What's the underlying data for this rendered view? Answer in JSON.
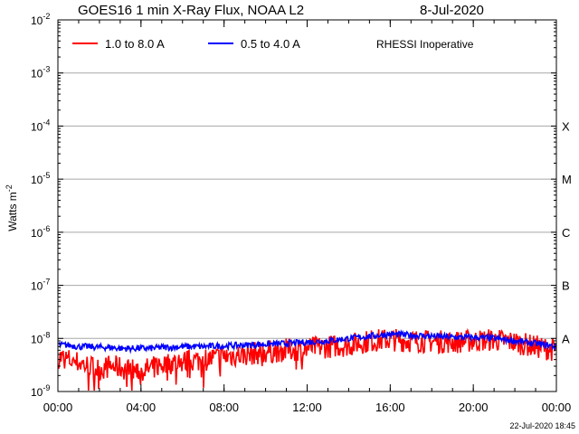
{
  "chart_data": {
    "type": "line",
    "title": "GOES16 1 min X-Ray Flux, NOAA L2",
    "date": "8-Jul-2020",
    "ylabel_base": "Watts m",
    "ylabel_exp": "-2",
    "yscale": "log",
    "ylim_exp": [
      -9,
      -2
    ],
    "y_tick_exps": [
      "-2",
      "-3",
      "-4",
      "-5",
      "-6",
      "-7",
      "-8",
      "-9"
    ],
    "x_ticks": [
      "00:00",
      "04:00",
      "08:00",
      "12:00",
      "16:00",
      "20:00",
      "00:00"
    ],
    "xlim_hours": [
      0,
      24
    ],
    "grid": true,
    "flare_classes": [
      {
        "label": "X",
        "exp": -4
      },
      {
        "label": "M",
        "exp": -5
      },
      {
        "label": "C",
        "exp": -6
      },
      {
        "label": "B",
        "exp": -7
      },
      {
        "label": "A",
        "exp": -8
      }
    ],
    "annotation": "RHESSI Inoperative",
    "footer": "22-Jul-2020 18:45",
    "legend_position": "top-left",
    "series": [
      {
        "name": "1.0 to 8.0 A",
        "color": "#ff0000",
        "hours": [
          0,
          0.5,
          1,
          1.5,
          2,
          2.5,
          3,
          3.5,
          4,
          4.5,
          5,
          5.5,
          6,
          6.5,
          7,
          7.5,
          8,
          9,
          10,
          11,
          12,
          13,
          14,
          15,
          16,
          17,
          18,
          19,
          20,
          21,
          22,
          23,
          24
        ],
        "values": [
          4.5e-09,
          4e-09,
          3.5e-09,
          3e-09,
          2.6e-09,
          3e-09,
          2.8e-09,
          2.6e-09,
          2.4e-09,
          2.8e-09,
          3.2e-09,
          3.5e-09,
          3.6e-09,
          3.8e-09,
          4e-09,
          4.2e-09,
          4.6e-09,
          5e-09,
          5.5e-09,
          6e-09,
          6.5e-09,
          7e-09,
          7.5e-09,
          9e-09,
          9.5e-09,
          9e-09,
          8.8e-09,
          8.5e-09,
          9e-09,
          9.5e-09,
          8.5e-09,
          7e-09,
          6e-09
        ]
      },
      {
        "name": "0.5 to 4.0 A",
        "color": "#0000ff",
        "hours": [
          0,
          0.5,
          1,
          1.5,
          2,
          2.5,
          3,
          3.5,
          4,
          4.5,
          5,
          5.5,
          6,
          6.5,
          7,
          7.5,
          8,
          9,
          10,
          11,
          12,
          13,
          14,
          15,
          16,
          17,
          18,
          19,
          20,
          21,
          22,
          23,
          24
        ],
        "values": [
          7.5e-09,
          7.5e-09,
          7e-09,
          7e-09,
          6.8e-09,
          6.8e-09,
          6.5e-09,
          6.5e-09,
          6.5e-09,
          6.5e-09,
          6.8e-09,
          6.8e-09,
          7e-09,
          7e-09,
          7e-09,
          7.2e-09,
          7.2e-09,
          7.5e-09,
          7.8e-09,
          8e-09,
          8.5e-09,
          9e-09,
          1e-08,
          1.1e-08,
          1.2e-08,
          1.15e-08,
          1.1e-08,
          1.05e-08,
          1.05e-08,
          1e-08,
          9e-09,
          8e-09,
          7e-09
        ]
      }
    ]
  }
}
